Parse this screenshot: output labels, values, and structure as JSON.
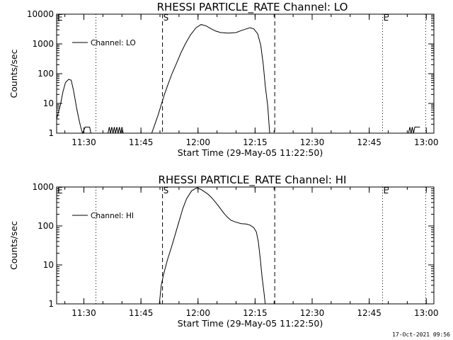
{
  "chart_data": [
    {
      "type": "line",
      "title": "RHESSI PARTICLE_RATE Channel: LO",
      "xlabel": "Start Time (29-May-05 11:22:50)",
      "ylabel": "Counts/sec",
      "yscale": "log",
      "ylim": [
        1,
        10000
      ],
      "ytick_labels": [
        "1",
        "10",
        "100",
        "1000",
        "10000"
      ],
      "ytick_values": [
        1,
        10,
        100,
        1000,
        10000
      ],
      "xlim": [
        "11:22:50",
        "13:02:00"
      ],
      "xtick_labels": [
        "11:30",
        "11:45",
        "12:00",
        "12:15",
        "12:30",
        "12:45",
        "13:00"
      ],
      "legend": {
        "position": "top-left",
        "entries": [
          "Channel: LO"
        ]
      },
      "markers": [
        {
          "label": "E",
          "time": "11:22:50",
          "style": "dotted"
        },
        {
          "label": "",
          "time": "11:33:10",
          "style": "dotted"
        },
        {
          "label": "S",
          "time": "11:50:40",
          "style": "dashed"
        },
        {
          "label": "",
          "time": "12:20:10",
          "style": "dashed"
        },
        {
          "label": "E",
          "time": "12:48:30",
          "style": "dotted"
        },
        {
          "label": "",
          "time": "12:59:50",
          "style": "dotted"
        }
      ],
      "series": [
        {
          "name": "Channel: LO",
          "points": [
            [
              "11:22:50",
              3
            ],
            [
              "11:23:50",
              9
            ],
            [
              "11:24:30",
              25
            ],
            [
              "11:25:10",
              50
            ],
            [
              "11:26:00",
              65
            ],
            [
              "11:26:40",
              60
            ],
            [
              "11:27:20",
              25
            ],
            [
              "11:28:00",
              8
            ],
            [
              "11:28:40",
              3
            ],
            [
              "11:29:10",
              1.6
            ],
            [
              "11:29:40",
              1
            ],
            [
              "11:30:20",
              1.6
            ],
            [
              "11:31:30",
              1.6
            ],
            [
              "11:31:50",
              1
            ],
            [
              "11:36:20",
              1
            ],
            [
              "11:36:40",
              1.6
            ],
            [
              "11:37:00",
              1
            ],
            [
              "11:37:20",
              1.6
            ],
            [
              "11:37:40",
              1
            ],
            [
              "11:38:00",
              1.6
            ],
            [
              "11:38:20",
              1
            ],
            [
              "11:38:40",
              1.6
            ],
            [
              "11:39:00",
              1
            ],
            [
              "11:39:20",
              1.6
            ],
            [
              "11:39:40",
              1
            ],
            [
              "11:40:00",
              1.6
            ],
            [
              "11:40:20",
              1
            ],
            [
              "11:47:50",
              1
            ],
            [
              "11:48:40",
              2
            ],
            [
              "11:49:30",
              4
            ],
            [
              "11:50:20",
              9
            ],
            [
              "11:51:10",
              20
            ],
            [
              "11:52:00",
              40
            ],
            [
              "11:53:10",
              100
            ],
            [
              "11:54:20",
              220
            ],
            [
              "11:55:30",
              500
            ],
            [
              "11:56:40",
              1000
            ],
            [
              "11:58:00",
              2000
            ],
            [
              "11:59:30",
              3500
            ],
            [
              "12:00:50",
              4500
            ],
            [
              "12:02:10",
              4000
            ],
            [
              "12:03:30",
              3200
            ],
            [
              "12:04:40",
              2700
            ],
            [
              "12:06:00",
              2400
            ],
            [
              "12:08:00",
              2300
            ],
            [
              "12:10:00",
              2400
            ],
            [
              "12:11:20",
              2800
            ],
            [
              "12:12:40",
              3200
            ],
            [
              "12:13:40",
              3500
            ],
            [
              "12:14:40",
              3200
            ],
            [
              "12:15:40",
              2200
            ],
            [
              "12:16:30",
              900
            ],
            [
              "12:17:10",
              200
            ],
            [
              "12:17:40",
              40
            ],
            [
              "12:18:20",
              8
            ],
            [
              "12:18:50",
              1
            ],
            [
              "12:55:20",
              1
            ],
            [
              "12:55:40",
              1.6
            ],
            [
              "12:56:00",
              1
            ],
            [
              "12:56:20",
              1.6
            ],
            [
              "12:56:40",
              1
            ],
            [
              "12:57:00",
              1.6
            ],
            [
              "12:58:20",
              1.6
            ]
          ]
        }
      ]
    },
    {
      "type": "line",
      "title": "RHESSI PARTICLE_RATE Channel: HI",
      "xlabel": "Start Time (29-May-05 11:22:50)",
      "ylabel": "Counts/sec",
      "yscale": "log",
      "ylim": [
        1,
        1000
      ],
      "ytick_labels": [
        "1",
        "10",
        "100",
        "1000"
      ],
      "ytick_values": [
        1,
        10,
        100,
        1000
      ],
      "xlim": [
        "11:22:50",
        "13:02:00"
      ],
      "xtick_labels": [
        "11:30",
        "11:45",
        "12:00",
        "12:15",
        "12:30",
        "12:45",
        "13:00"
      ],
      "legend": {
        "position": "top-left",
        "entries": [
          "Channel: HI"
        ]
      },
      "markers": [
        {
          "label": "E",
          "time": "11:22:50",
          "style": "dotted"
        },
        {
          "label": "",
          "time": "11:33:10",
          "style": "dotted"
        },
        {
          "label": "S",
          "time": "11:50:40",
          "style": "dashed"
        },
        {
          "label": "",
          "time": "12:20:10",
          "style": "dashed"
        },
        {
          "label": "E",
          "time": "12:48:30",
          "style": "dotted"
        },
        {
          "label": "",
          "time": "12:59:50",
          "style": "dotted"
        }
      ],
      "series": [
        {
          "name": "Channel: HI",
          "points": [
            [
              "11:49:50",
              1
            ],
            [
              "11:50:20",
              3
            ],
            [
              "11:51:00",
              6
            ],
            [
              "11:52:00",
              14
            ],
            [
              "11:53:00",
              28
            ],
            [
              "11:54:00",
              60
            ],
            [
              "11:55:00",
              130
            ],
            [
              "11:56:00",
              280
            ],
            [
              "11:57:00",
              500
            ],
            [
              "11:58:20",
              800
            ],
            [
              "11:59:40",
              950
            ],
            [
              "12:00:40",
              880
            ],
            [
              "12:01:40",
              760
            ],
            [
              "12:02:40",
              650
            ],
            [
              "12:03:40",
              520
            ],
            [
              "12:04:40",
              400
            ],
            [
              "12:05:40",
              300
            ],
            [
              "12:06:40",
              220
            ],
            [
              "12:07:40",
              170
            ],
            [
              "12:08:40",
              140
            ],
            [
              "12:10:00",
              125
            ],
            [
              "12:11:20",
              115
            ],
            [
              "12:12:40",
              112
            ],
            [
              "12:13:40",
              105
            ],
            [
              "12:14:40",
              90
            ],
            [
              "12:15:20",
              70
            ],
            [
              "12:15:50",
              40
            ],
            [
              "12:16:20",
              15
            ],
            [
              "12:16:50",
              5
            ],
            [
              "12:17:20",
              2
            ],
            [
              "12:17:40",
              1
            ]
          ]
        }
      ]
    }
  ],
  "footer": {
    "timestamp": "17-Oct-2021 09:56"
  }
}
